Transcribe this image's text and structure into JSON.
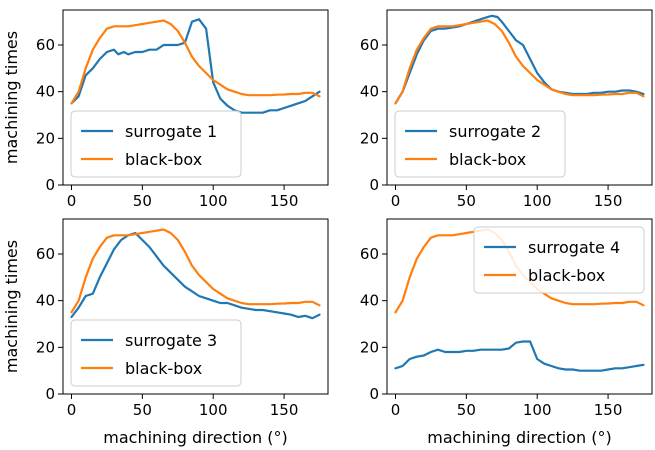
{
  "colors": {
    "surrogate": "#1f77b4",
    "blackbox": "#ff7f0e"
  },
  "chart_data": [
    {
      "type": "line",
      "ylabel": "machining times",
      "xlabel": "",
      "xlim": [
        -6,
        181
      ],
      "ylim": [
        0,
        75
      ],
      "xticks": [
        0,
        50,
        100,
        150
      ],
      "yticks": [
        0,
        20,
        40,
        60
      ],
      "legend_position": "bottom-left",
      "series": [
        {
          "name": "surrogate 1",
          "x": [
            0,
            5,
            10,
            15,
            20,
            25,
            30,
            33,
            37,
            40,
            45,
            50,
            55,
            60,
            65,
            70,
            75,
            80,
            85,
            90,
            95,
            100,
            105,
            110,
            115,
            120,
            125,
            130,
            135,
            140,
            145,
            150,
            155,
            160,
            165,
            170,
            175
          ],
          "y": [
            35,
            38,
            47,
            50,
            54,
            57,
            58,
            56,
            57,
            56,
            57,
            57,
            58,
            58,
            60,
            60,
            60,
            61,
            70,
            71,
            67,
            44,
            37,
            34,
            32,
            31,
            31,
            31,
            31,
            32,
            32,
            33,
            34,
            35,
            36,
            38,
            40
          ]
        },
        {
          "name": "black-box",
          "x": [
            0,
            5,
            10,
            15,
            20,
            25,
            30,
            35,
            40,
            45,
            50,
            55,
            60,
            65,
            70,
            75,
            80,
            85,
            90,
            95,
            100,
            105,
            110,
            115,
            120,
            125,
            130,
            135,
            140,
            145,
            150,
            155,
            160,
            165,
            170,
            175
          ],
          "y": [
            35,
            40,
            50,
            58,
            63,
            67,
            68,
            68,
            68,
            68.5,
            69,
            69.5,
            70,
            70.5,
            69,
            66,
            61,
            55,
            51,
            48,
            45,
            43,
            41,
            40,
            39,
            38.5,
            38.5,
            38.5,
            38.5,
            38.7,
            38.8,
            39,
            39,
            39.5,
            39.5,
            38
          ]
        }
      ]
    },
    {
      "type": "line",
      "ylabel": "",
      "xlabel": "",
      "xlim": [
        -6,
        181
      ],
      "ylim": [
        0,
        75
      ],
      "xticks": [
        0,
        50,
        100,
        150
      ],
      "yticks": [
        0,
        20,
        40,
        60
      ],
      "legend_position": "bottom-left",
      "series": [
        {
          "name": "surrogate 2",
          "x": [
            0,
            5,
            10,
            15,
            20,
            25,
            30,
            35,
            40,
            45,
            50,
            55,
            60,
            65,
            68,
            72,
            75,
            80,
            85,
            90,
            95,
            100,
            105,
            110,
            115,
            120,
            125,
            130,
            135,
            140,
            145,
            150,
            155,
            160,
            165,
            170,
            175
          ],
          "y": [
            35,
            40,
            48,
            56,
            62,
            66,
            67,
            67,
            67.5,
            68,
            69,
            70,
            71,
            72,
            72.5,
            72,
            70,
            66,
            62,
            60,
            54,
            48,
            44,
            41,
            40,
            39.5,
            39,
            39,
            39,
            39.5,
            39.5,
            40,
            40,
            40.5,
            40.5,
            40,
            39
          ]
        },
        {
          "name": "black-box",
          "x": [
            0,
            5,
            10,
            15,
            20,
            25,
            30,
            35,
            40,
            45,
            50,
            55,
            60,
            65,
            70,
            75,
            80,
            85,
            90,
            95,
            100,
            105,
            110,
            115,
            120,
            125,
            130,
            135,
            140,
            145,
            150,
            155,
            160,
            165,
            170,
            175
          ],
          "y": [
            35,
            40,
            50,
            58,
            63,
            67,
            68,
            68,
            68,
            68.5,
            69,
            69.5,
            70,
            70.5,
            69,
            66,
            61,
            55,
            51,
            48,
            45,
            43,
            41,
            40,
            39,
            38.5,
            38.5,
            38.5,
            38.5,
            38.7,
            38.8,
            39,
            39,
            39.5,
            39.5,
            38
          ]
        }
      ]
    },
    {
      "type": "line",
      "ylabel": "machining times",
      "xlabel": "machining direction (°)",
      "xlim": [
        -6,
        181
      ],
      "ylim": [
        0,
        75
      ],
      "xticks": [
        0,
        50,
        100,
        150
      ],
      "yticks": [
        0,
        20,
        40,
        60
      ],
      "legend_position": "bottom-left",
      "series": [
        {
          "name": "surrogate 3",
          "x": [
            0,
            5,
            10,
            15,
            20,
            25,
            30,
            35,
            40,
            45,
            50,
            55,
            60,
            65,
            70,
            75,
            80,
            85,
            90,
            95,
            100,
            105,
            110,
            115,
            120,
            125,
            130,
            135,
            140,
            145,
            150,
            155,
            160,
            165,
            170,
            175
          ],
          "y": [
            33,
            37,
            42,
            43,
            50,
            56,
            62,
            66,
            68,
            69,
            66,
            63,
            59,
            55,
            52,
            49,
            46,
            44,
            42,
            41,
            40,
            39,
            39,
            38,
            37,
            36.5,
            36,
            36,
            35.5,
            35,
            34.5,
            34,
            33,
            33.5,
            32.5,
            34
          ]
        },
        {
          "name": "black-box",
          "x": [
            0,
            5,
            10,
            15,
            20,
            25,
            30,
            35,
            40,
            45,
            50,
            55,
            60,
            65,
            70,
            75,
            80,
            85,
            90,
            95,
            100,
            105,
            110,
            115,
            120,
            125,
            130,
            135,
            140,
            145,
            150,
            155,
            160,
            165,
            170,
            175
          ],
          "y": [
            35,
            40,
            50,
            58,
            63,
            67,
            68,
            68,
            68,
            68.5,
            69,
            69.5,
            70,
            70.5,
            69,
            66,
            61,
            55,
            51,
            48,
            45,
            43,
            41,
            40,
            39,
            38.5,
            38.5,
            38.5,
            38.5,
            38.7,
            38.8,
            39,
            39,
            39.5,
            39.5,
            38
          ]
        }
      ]
    },
    {
      "type": "line",
      "ylabel": "",
      "xlabel": "machining direction (°)",
      "xlim": [
        -6,
        181
      ],
      "ylim": [
        0,
        75
      ],
      "xticks": [
        0,
        50,
        100,
        150
      ],
      "yticks": [
        0,
        20,
        40,
        60
      ],
      "legend_position": "top-right",
      "series": [
        {
          "name": "surrogate 4",
          "x": [
            0,
            5,
            10,
            15,
            20,
            25,
            30,
            35,
            40,
            45,
            50,
            55,
            60,
            65,
            70,
            75,
            80,
            85,
            90,
            95,
            100,
            105,
            110,
            115,
            120,
            125,
            130,
            135,
            140,
            145,
            150,
            155,
            160,
            165,
            170,
            175
          ],
          "y": [
            11,
            12,
            15,
            16,
            16.5,
            18,
            19,
            18,
            18,
            18,
            18.5,
            18.5,
            19,
            19,
            19,
            19,
            19.5,
            22,
            22.5,
            22.5,
            15,
            13,
            12,
            11,
            10.5,
            10.5,
            10,
            10,
            10,
            10,
            10.5,
            11,
            11,
            11.5,
            12,
            12.5
          ]
        },
        {
          "name": "black-box",
          "x": [
            0,
            5,
            10,
            15,
            20,
            25,
            30,
            35,
            40,
            45,
            50,
            55,
            60,
            65,
            70,
            75,
            80,
            85,
            90,
            95,
            100,
            105,
            110,
            115,
            120,
            125,
            130,
            135,
            140,
            145,
            150,
            155,
            160,
            165,
            170,
            175
          ],
          "y": [
            35,
            40,
            50,
            58,
            63,
            67,
            68,
            68,
            68,
            68.5,
            69,
            69.5,
            70,
            70.5,
            69,
            66,
            61,
            55,
            51,
            48,
            45,
            43,
            41,
            40,
            39,
            38.5,
            38.5,
            38.5,
            38.5,
            38.7,
            38.8,
            39,
            39,
            39.5,
            39.5,
            38
          ]
        }
      ]
    }
  ]
}
